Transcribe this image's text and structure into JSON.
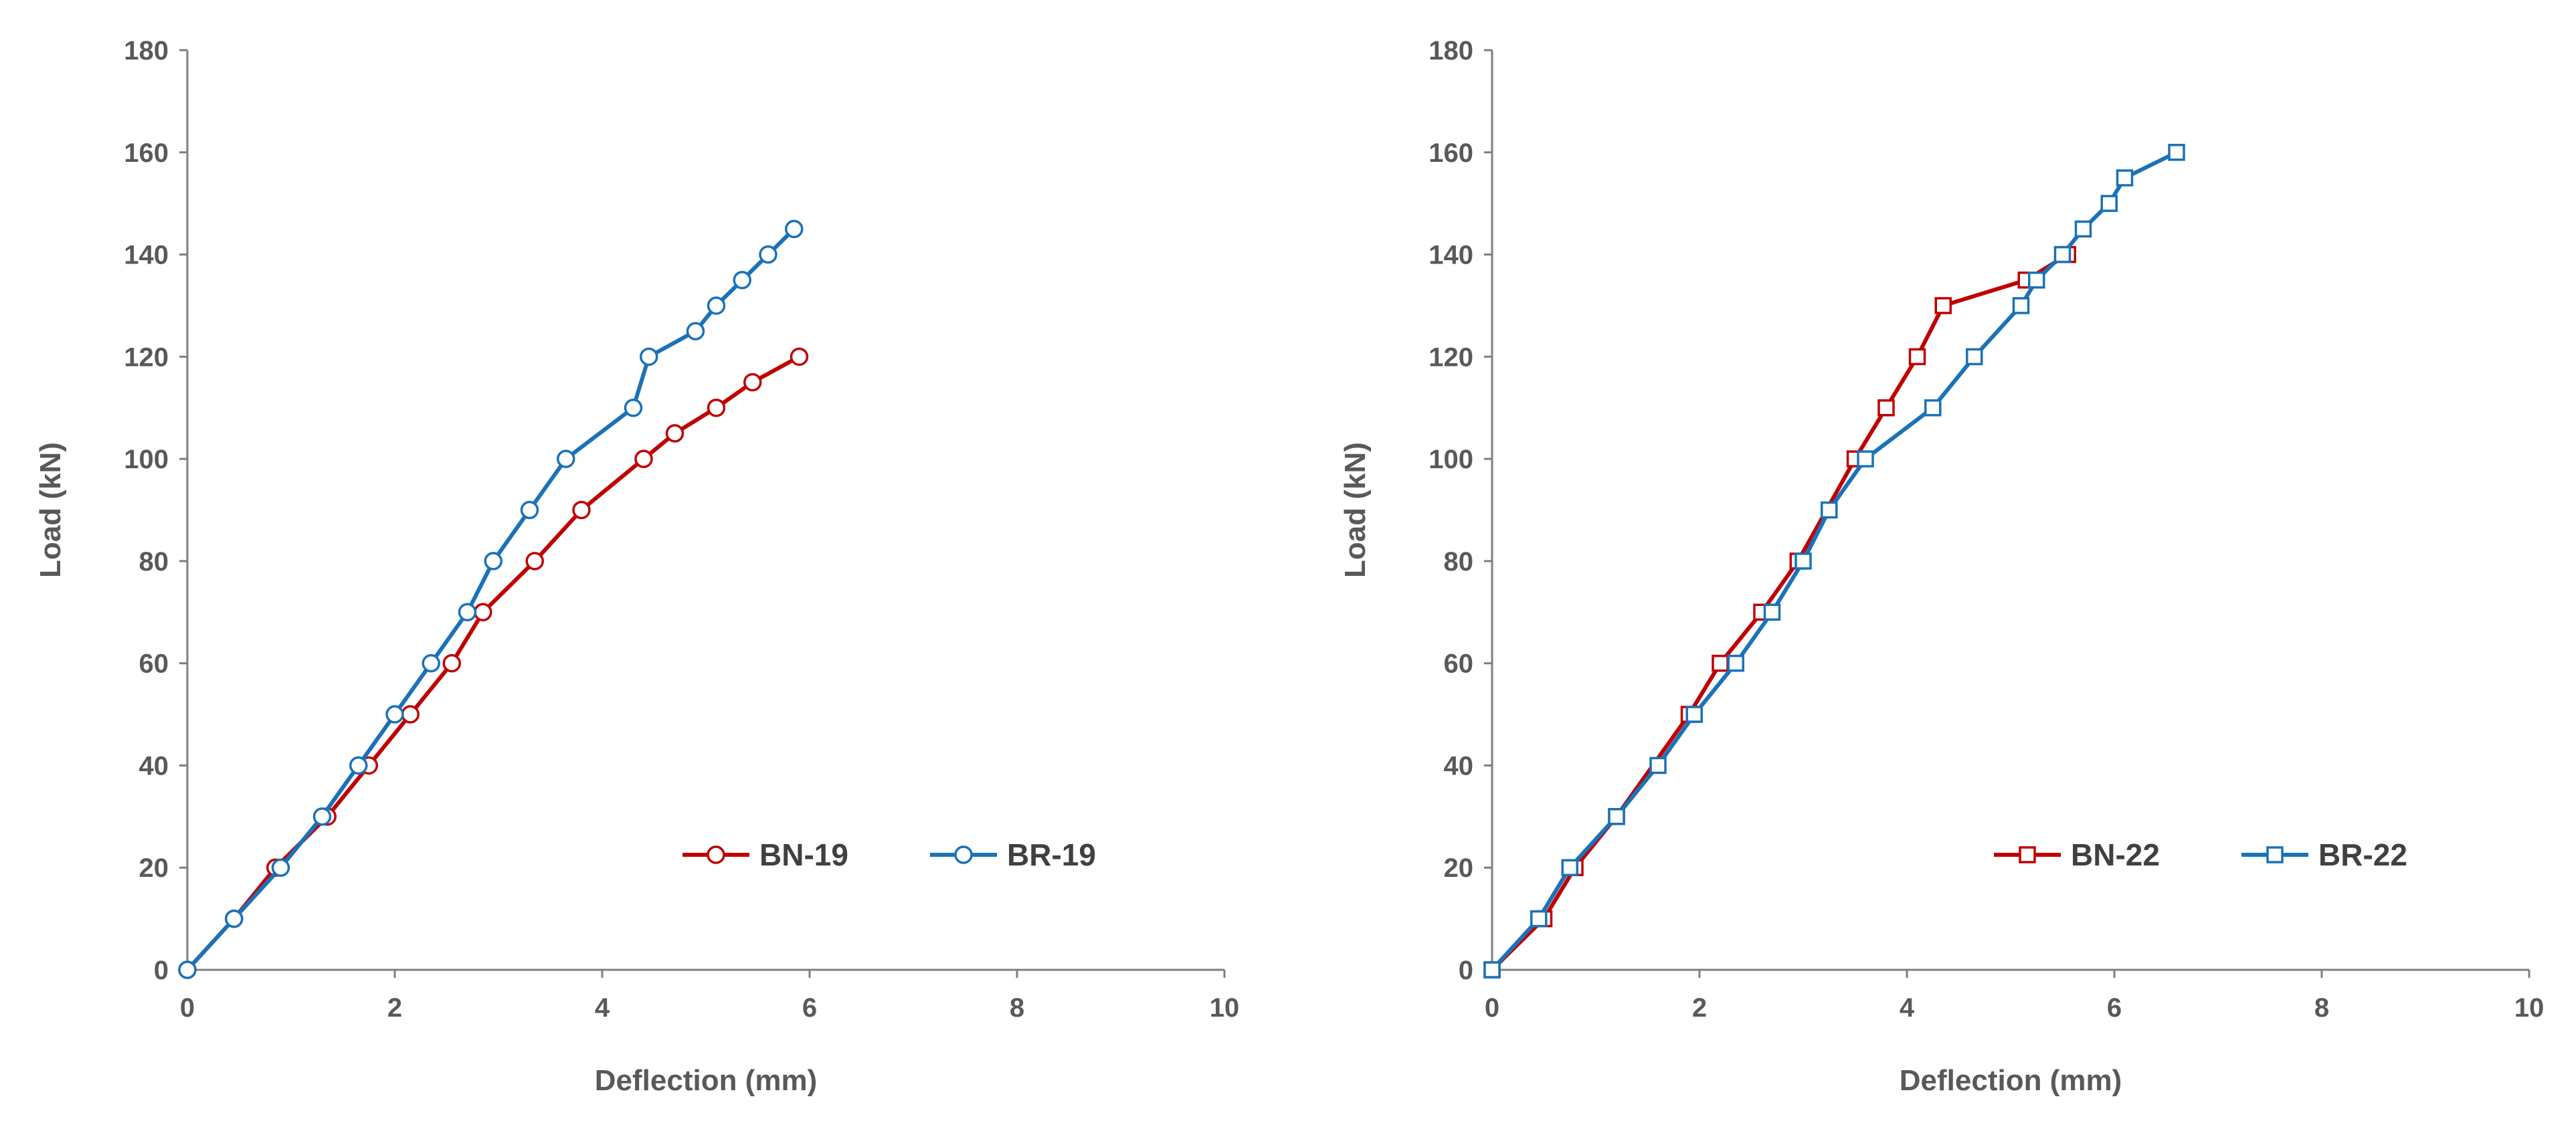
{
  "chart_data": [
    {
      "type": "line",
      "title": "",
      "xlabel": "Deflection (mm)",
      "ylabel": "Load (kN)",
      "xlim": [
        0,
        10
      ],
      "ylim": [
        0,
        180
      ],
      "xticks": [
        0,
        2,
        4,
        6,
        8,
        10
      ],
      "yticks": [
        0,
        20,
        40,
        60,
        80,
        100,
        120,
        140,
        160,
        180
      ],
      "grid": false,
      "legend_position": "bottom-right",
      "marker": "circle",
      "series": [
        {
          "name": "BN-19",
          "color": "#c00000",
          "x": [
            0,
            0.45,
            0.85,
            1.35,
            1.75,
            2.15,
            2.55,
            2.85,
            3.35,
            3.8,
            4.4,
            4.7,
            5.1,
            5.45,
            5.9
          ],
          "y": [
            0,
            10,
            20,
            30,
            40,
            50,
            60,
            70,
            80,
            90,
            100,
            105,
            110,
            115,
            120
          ]
        },
        {
          "name": "BR-19",
          "color": "#1a72b8",
          "x": [
            0,
            0.45,
            0.9,
            1.3,
            1.65,
            2.0,
            2.35,
            2.7,
            2.95,
            3.3,
            3.65,
            4.3,
            4.45,
            4.9,
            5.1,
            5.35,
            5.6,
            5.85
          ],
          "y": [
            0,
            10,
            20,
            30,
            40,
            50,
            60,
            70,
            80,
            90,
            100,
            110,
            120,
            125,
            130,
            135,
            140,
            145
          ]
        }
      ]
    },
    {
      "type": "line",
      "title": "",
      "xlabel": "Deflection (mm)",
      "ylabel": "Load (kN)",
      "xlim": [
        0,
        10
      ],
      "ylim": [
        0,
        180
      ],
      "xticks": [
        0,
        2,
        4,
        6,
        8,
        10
      ],
      "yticks": [
        0,
        20,
        40,
        60,
        80,
        100,
        120,
        140,
        160,
        180
      ],
      "grid": false,
      "legend_position": "bottom-right",
      "marker": "square",
      "series": [
        {
          "name": "BN-22",
          "color": "#c00000",
          "x": [
            0,
            0.5,
            0.8,
            1.2,
            1.9,
            2.2,
            2.6,
            2.95,
            3.5,
            3.8,
            4.1,
            4.35,
            5.15,
            5.55
          ],
          "y": [
            0,
            10,
            20,
            30,
            50,
            60,
            70,
            80,
            100,
            110,
            120,
            130,
            135,
            140
          ]
        },
        {
          "name": "BR-22",
          "color": "#1a72b8",
          "x": [
            0,
            0.45,
            0.75,
            1.2,
            1.6,
            1.95,
            2.35,
            2.7,
            3.0,
            3.25,
            3.6,
            4.25,
            4.65,
            5.1,
            5.25,
            5.5,
            5.7,
            5.95,
            6.1,
            6.6
          ],
          "y": [
            0,
            10,
            20,
            30,
            40,
            50,
            60,
            70,
            80,
            90,
            100,
            110,
            120,
            130,
            135,
            140,
            145,
            150,
            155,
            160
          ]
        }
      ]
    }
  ]
}
